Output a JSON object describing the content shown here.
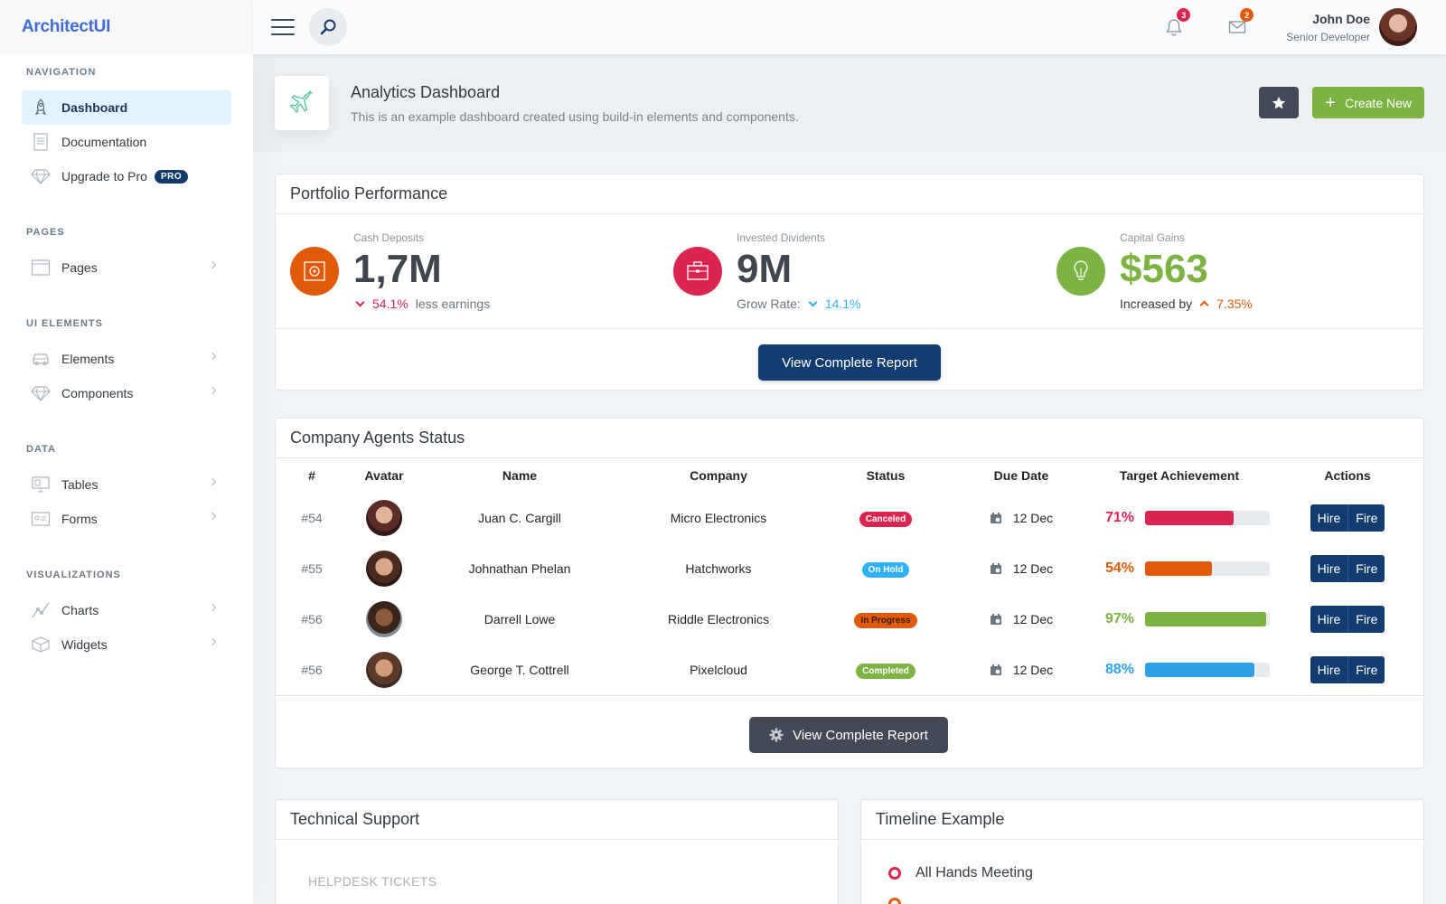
{
  "app": {
    "logo": "ArchitectUI"
  },
  "header": {
    "notifications_count": "3",
    "messages_count": "2",
    "user_name": "John Doe",
    "user_role": "Senior Developer"
  },
  "sidebar": {
    "sections": [
      {
        "heading": "Navigation"
      },
      {
        "heading": "Pages"
      },
      {
        "heading": "UI Elements"
      },
      {
        "heading": "Data"
      },
      {
        "heading": "Visualizations"
      }
    ],
    "items": [
      {
        "label": "Dashboard",
        "icon": "rocket-icon",
        "active": true
      },
      {
        "label": "Documentation",
        "icon": "document-icon"
      },
      {
        "label": "Upgrade to Pro",
        "icon": "diamond-icon",
        "badge": "PRO"
      },
      {
        "label": "Pages",
        "icon": "browser-icon"
      },
      {
        "label": "Elements",
        "icon": "car-icon"
      },
      {
        "label": "Components",
        "icon": "diamond-icon"
      },
      {
        "label": "Tables",
        "icon": "display-icon"
      },
      {
        "label": "Forms",
        "icon": "id-card-icon"
      },
      {
        "label": "Charts",
        "icon": "graph-icon"
      },
      {
        "label": "Widgets",
        "icon": "box-icon"
      }
    ]
  },
  "page": {
    "title": "Analytics Dashboard",
    "subtitle": "This is an example dashboard created using build-in elements and components.",
    "create_label": "Create New"
  },
  "portfolio": {
    "title": "Portfolio Performance",
    "widgets": [
      {
        "label": "Cash Deposits",
        "value": "1,7M",
        "pct": "54.1%",
        "suffix": "less earnings"
      },
      {
        "label": "Invested Dividents",
        "value": "9M",
        "prefix": "Grow Rate:",
        "pct": "14.1%"
      },
      {
        "label": "Capital Gains",
        "value": "$563",
        "prefix": "Increased by",
        "pct": "7.35%"
      }
    ],
    "report_label": "View Complete Report"
  },
  "agents": {
    "title": "Company Agents Status",
    "columns": [
      "#",
      "Avatar",
      "Name",
      "Company",
      "Status",
      "Due Date",
      "Target Achievement",
      "Actions"
    ],
    "rows": [
      {
        "id": "#54",
        "name": "Juan C. Cargill",
        "company": "Micro Electronics",
        "status": "Canceled",
        "due": "12 Dec",
        "target": "71%",
        "progress": 0.71
      },
      {
        "id": "#55",
        "name": "Johnathan Phelan",
        "company": "Hatchworks",
        "status": "On Hold",
        "due": "12 Dec",
        "target": "54%",
        "progress": 0.54
      },
      {
        "id": "#56",
        "name": "Darrell Lowe",
        "company": "Riddle Electronics",
        "status": "In Progress",
        "due": "12 Dec",
        "target": "97%",
        "progress": 0.97
      },
      {
        "id": "#56",
        "name": "George T. Cottrell",
        "company": "Pixelcloud",
        "status": "Completed",
        "due": "12 Dec",
        "target": "88%",
        "progress": 0.88
      }
    ],
    "hire_label": "Hire",
    "fire_label": "Fire",
    "report_label": "View Complete Report"
  },
  "support": {
    "title": "Technical Support",
    "label": "HELPDESK TICKETS"
  },
  "timeline": {
    "title": "Timeline Example",
    "items": [
      "All Hands Meeting"
    ]
  },
  "colors": {
    "primary": "#133c71",
    "danger": "#d92550",
    "warning": "#e05a0a",
    "success": "#7cb342",
    "info": "#30b1ff",
    "dark": "#444a55"
  }
}
